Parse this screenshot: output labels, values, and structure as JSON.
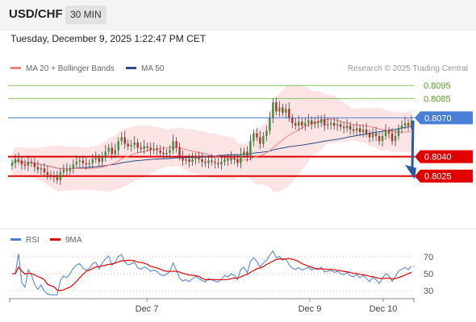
{
  "header": {
    "symbol": "USD/CHF",
    "timeframe": "30 MIN"
  },
  "timestamp": "Tuesday, December 9, 2025 1:22:47 PM CET",
  "legend": {
    "items": [
      {
        "label": "MA 20 + Bollinger Bands",
        "color": "#f08080"
      },
      {
        "label": "MA 50",
        "color": "#2b4c8c"
      }
    ],
    "copyright": "Research © 2025 Trading Central"
  },
  "chart_data": [
    {
      "type": "candlestick",
      "title": "USD/CHF 30 MIN",
      "xlabel": "",
      "ylabel": "",
      "x_ticks": [
        "Dec 7",
        "Dec 9",
        "Dec 10"
      ],
      "ylim": [
        0.7985,
        0.8102
      ],
      "grid": false,
      "legend_position": "top-left",
      "overlays": [
        "MA 20",
        "Bollinger Bands",
        "MA 50"
      ],
      "levels": [
        {
          "label": "0.8095",
          "value": 0.8095,
          "type": "target",
          "color": "#88c55a"
        },
        {
          "label": "0.8085",
          "value": 0.8085,
          "type": "target",
          "color": "#88c55a"
        },
        {
          "label": "0.8070",
          "value": 0.807,
          "type": "pivot",
          "color": "#4a7fd6"
        },
        {
          "label": "0.8040",
          "value": 0.804,
          "type": "support",
          "color": "#e00000"
        },
        {
          "label": "0.8025",
          "value": 0.8025,
          "type": "support",
          "color": "#e00000"
        }
      ],
      "last_price": 0.8068,
      "forecast": {
        "from": 0.8068,
        "to": 0.8025,
        "direction": "down",
        "color": "#2b5aa3"
      },
      "close_series": [
        0.8035,
        0.8038,
        0.8037,
        0.8034,
        0.8033,
        0.8036,
        0.8035,
        0.8032,
        0.803,
        0.8031,
        0.8028,
        0.8026,
        0.8025,
        0.8024,
        0.8022,
        0.8028,
        0.803,
        0.8029,
        0.8031,
        0.8034,
        0.8036,
        0.8037,
        0.8035,
        0.8034,
        0.8035,
        0.8038,
        0.8039,
        0.8036,
        0.804,
        0.8044,
        0.8047,
        0.8042,
        0.8045,
        0.8052,
        0.8055,
        0.805,
        0.8048,
        0.8049,
        0.8051,
        0.8047,
        0.8046,
        0.8048,
        0.8047,
        0.8045,
        0.8046,
        0.8045,
        0.8043,
        0.8042,
        0.8043,
        0.8045,
        0.8052,
        0.8047,
        0.804,
        0.8037,
        0.8038,
        0.8036,
        0.8038,
        0.804,
        0.8038,
        0.8036,
        0.8035,
        0.8037,
        0.8036,
        0.8035,
        0.8034,
        0.8036,
        0.8038,
        0.8037,
        0.8039,
        0.8038,
        0.8035,
        0.8042,
        0.8044,
        0.804,
        0.8052,
        0.8058,
        0.8055,
        0.805,
        0.8056,
        0.806,
        0.807,
        0.8082,
        0.8075,
        0.8078,
        0.8074,
        0.8077,
        0.807,
        0.8066,
        0.8064,
        0.8067,
        0.8064,
        0.8066,
        0.8068,
        0.8065,
        0.8067,
        0.8066,
        0.8069,
        0.8064,
        0.8065,
        0.8066,
        0.8064,
        0.8065,
        0.8063,
        0.8062,
        0.8064,
        0.8061,
        0.806,
        0.8062,
        0.8059,
        0.8061,
        0.8058,
        0.8055,
        0.8058,
        0.8056,
        0.8052,
        0.8056,
        0.806,
        0.8058,
        0.8052,
        0.8056,
        0.8062,
        0.8064,
        0.8066,
        0.8064,
        0.8068
      ]
    },
    {
      "type": "line",
      "title": "RSI",
      "series": [
        {
          "name": "RSI",
          "color": "#4a7fd6"
        },
        {
          "name": "9MA",
          "color": "#e00000"
        }
      ],
      "y_ticks": [
        70,
        50,
        30
      ],
      "ylim": [
        20,
        80
      ],
      "reference_lines": [
        70,
        50,
        30
      ],
      "x_ticks": [
        "Dec 7",
        "Dec 9",
        "Dec 10"
      ]
    }
  ]
}
